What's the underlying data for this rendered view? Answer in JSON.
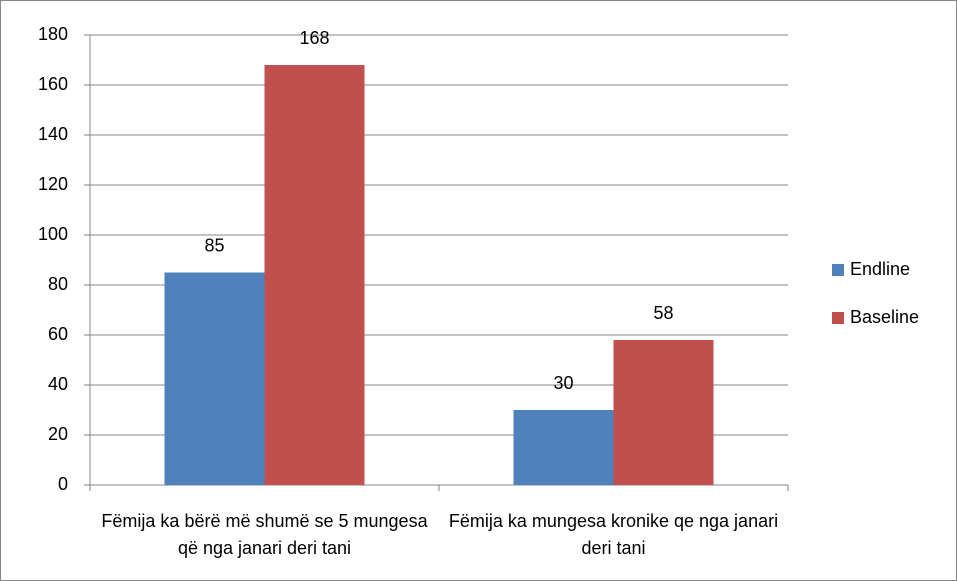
{
  "chart_data": {
    "type": "bar",
    "categories": [
      "Fëmija ka bërë më shumë se 5 mungesa që nga janari deri tani",
      "Fëmija ka mungesa kronike qe nga janari deri tani"
    ],
    "series": [
      {
        "name": "Endline",
        "color": "#4f81bd",
        "values": [
          85,
          30
        ]
      },
      {
        "name": "Baseline",
        "color": "#c0504d",
        "values": [
          168,
          58
        ]
      }
    ],
    "ylim": [
      0,
      180
    ],
    "yticks": [
      0,
      20,
      40,
      60,
      80,
      100,
      120,
      140,
      160,
      180
    ],
    "grid": true,
    "legend": "right"
  }
}
